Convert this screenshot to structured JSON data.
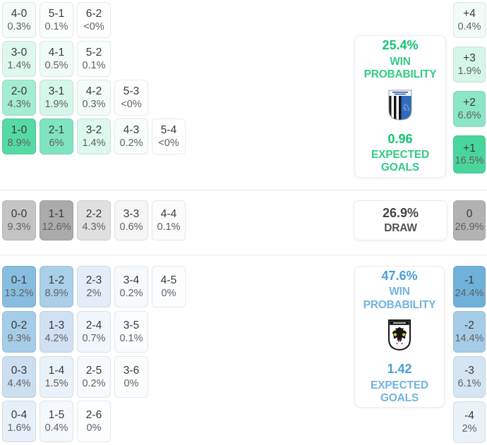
{
  "chart_data": {
    "type": "heatmap",
    "title": "Correct score probability matrix with win/draw probabilities and expected goals",
    "legend_position": "right",
    "home": {
      "rows": [
        [
          {
            "score": "4-0",
            "pct": "0.3%",
            "bg": "#f3fcf8"
          },
          {
            "score": "5-1",
            "pct": "0.1%",
            "bg": "#fafefc"
          },
          {
            "score": "6-2",
            "pct": "<0%",
            "bg": "#fdfefd"
          }
        ],
        [
          {
            "score": "3-0",
            "pct": "1.4%",
            "bg": "#ddf8ed"
          },
          {
            "score": "4-1",
            "pct": "0.5%",
            "bg": "#effbf6"
          },
          {
            "score": "5-2",
            "pct": "0.1%",
            "bg": "#fafefc"
          }
        ],
        [
          {
            "score": "2-0",
            "pct": "4.3%",
            "bg": "#a4ecd2"
          },
          {
            "score": "3-1",
            "pct": "1.9%",
            "bg": "#d5f6e8"
          },
          {
            "score": "4-2",
            "pct": "0.3%",
            "bg": "#f3fcf8"
          },
          {
            "score": "5-3",
            "pct": "<0%",
            "bg": "#fdfefd"
          }
        ],
        [
          {
            "score": "1-0",
            "pct": "8.9%",
            "bg": "#55daa3"
          },
          {
            "score": "2-1",
            "pct": "6%",
            "bg": "#7fe4bf"
          },
          {
            "score": "3-2",
            "pct": "1.4%",
            "bg": "#ddf8ed"
          },
          {
            "score": "4-3",
            "pct": "0.2%",
            "bg": "#f7fdfb"
          },
          {
            "score": "5-4",
            "pct": "<0%",
            "bg": "#fdfefd"
          }
        ]
      ],
      "diffs": [
        {
          "score": "+4",
          "pct": "0.4%",
          "bg": "#f1fcf7"
        },
        {
          "score": "+3",
          "pct": "1.9%",
          "bg": "#d5f6e8"
        },
        {
          "score": "+2",
          "pct": "6.6%",
          "bg": "#8ae6c4"
        },
        {
          "score": "+1",
          "pct": "16.5%",
          "bg": "#49d69c"
        }
      ],
      "box": {
        "value": "25.4%",
        "label_line1": "WIN",
        "label_line2": "PROBABILITY",
        "goals_value": "0.96",
        "goals_line1": "EXPECTED",
        "goals_line2": "GOALS",
        "crest": "gillingham-crest",
        "accent": "#15c472"
      }
    },
    "draw": {
      "row": [
        {
          "score": "0-0",
          "pct": "9.3%",
          "bg": "#c4c4c4"
        },
        {
          "score": "1-1",
          "pct": "12.6%",
          "bg": "#ababab"
        },
        {
          "score": "2-2",
          "pct": "4.3%",
          "bg": "#e0e0e0"
        },
        {
          "score": "3-3",
          "pct": "0.6%",
          "bg": "#f6f6f6"
        },
        {
          "score": "4-4",
          "pct": "0.1%",
          "bg": "#fbfbfb"
        }
      ],
      "diff": [
        {
          "score": "0",
          "pct": "26.9%",
          "bg": "#b2b2b2"
        }
      ],
      "box": {
        "value": "26.9%",
        "label": "DRAW",
        "accent": "#454545"
      }
    },
    "away": {
      "rows": [
        [
          {
            "score": "0-1",
            "pct": "13.2%",
            "bg": "#87bee0"
          },
          {
            "score": "1-2",
            "pct": "8.9%",
            "bg": "#a9cfe9"
          },
          {
            "score": "2-3",
            "pct": "2%",
            "bg": "#e2edf7"
          },
          {
            "score": "3-4",
            "pct": "0.2%",
            "bg": "#f7fafd"
          },
          {
            "score": "4-5",
            "pct": "0%",
            "bg": "#fbfdfe"
          }
        ],
        [
          {
            "score": "0-2",
            "pct": "9.3%",
            "bg": "#a6cde8"
          },
          {
            "score": "1-3",
            "pct": "4.2%",
            "bg": "#cfe1f2"
          },
          {
            "score": "2-4",
            "pct": "0.7%",
            "bg": "#f0f6fb"
          },
          {
            "score": "3-5",
            "pct": "0.1%",
            "bg": "#fafcfe"
          }
        ],
        [
          {
            "score": "0-3",
            "pct": "4.4%",
            "bg": "#cbdff1"
          },
          {
            "score": "1-4",
            "pct": "1.5%",
            "bg": "#e9f2f9"
          },
          {
            "score": "2-5",
            "pct": "0.2%",
            "bg": "#f7fafd"
          },
          {
            "score": "3-6",
            "pct": "0%",
            "bg": "#fbfdfe"
          }
        ],
        [
          {
            "score": "0-4",
            "pct": "1.6%",
            "bg": "#e7f0f8"
          },
          {
            "score": "1-5",
            "pct": "0.4%",
            "bg": "#f4f8fc"
          },
          {
            "score": "2-6",
            "pct": "0%",
            "bg": "#fbfdfe"
          }
        ]
      ],
      "diffs": [
        {
          "score": "-1",
          "pct": "24.4%",
          "bg": "#70b1da"
        },
        {
          "score": "-2",
          "pct": "14.4%",
          "bg": "#a6cde8"
        },
        {
          "score": "-3",
          "pct": "6.1%",
          "bg": "#d4e6f3"
        },
        {
          "score": "-4",
          "pct": "2%",
          "bg": "#eaf2f9"
        }
      ],
      "box": {
        "value": "47.6%",
        "label_line1": "WIN",
        "label_line2": "PROBABILITY",
        "goals_value": "1.42",
        "goals_line1": "EXPECTED",
        "goals_line2": "GOALS",
        "crest": "afc-wimbledon-crest",
        "accent": "#4aa0d5"
      }
    },
    "colors": {
      "home_accent": "#15c472",
      "away_accent": "#4aa0d5",
      "draw_accent": "#454545",
      "home_scale_max": "#49d69c",
      "away_scale_max": "#70b1da",
      "draw_scale_max": "#ababab"
    }
  }
}
